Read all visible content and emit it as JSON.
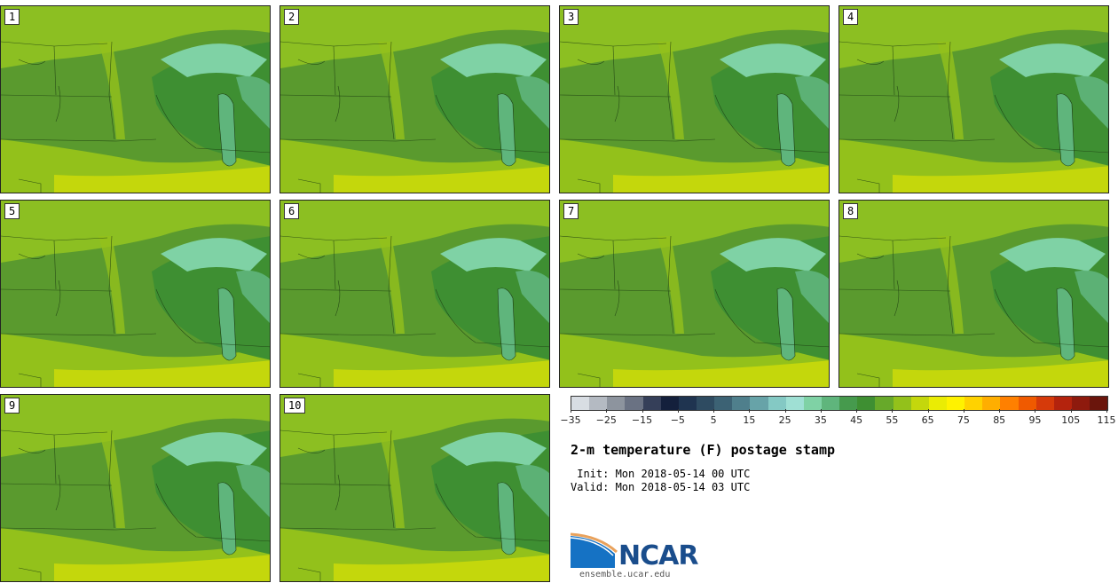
{
  "panels": [
    "1",
    "2",
    "3",
    "4",
    "5",
    "6",
    "7",
    "8",
    "9",
    "10"
  ],
  "colorbar": {
    "colors": [
      "#d8dde3",
      "#b4bac2",
      "#8d949e",
      "#6a7283",
      "#353f59",
      "#14203c",
      "#1f3450",
      "#2e4b61",
      "#3c6274",
      "#4f7f8c",
      "#67a3a8",
      "#84c9c4",
      "#9fe0d4",
      "#7fd2a5",
      "#5fb57c",
      "#469a4d",
      "#3e8f32",
      "#67a92a",
      "#93c11b",
      "#c4d70c",
      "#eaec04",
      "#fff200",
      "#ffd200",
      "#ffae00",
      "#ff8000",
      "#f05a00",
      "#d63a0a",
      "#b4230d",
      "#8e1a0d",
      "#6a150c"
    ],
    "labels": [
      "−35",
      "−25",
      "−15",
      "−5",
      "5",
      "15",
      "25",
      "35",
      "45",
      "55",
      "65",
      "75",
      "85",
      "95",
      "105",
      "115"
    ]
  },
  "title": "2-m temperature (F) postage stamp",
  "init": " Init: Mon 2018-05-14 00 UTC",
  "valid": "Valid: Mon 2018-05-14 03 UTC",
  "logo_text": "NCAR",
  "site": "ensemble.ucar.edu"
}
